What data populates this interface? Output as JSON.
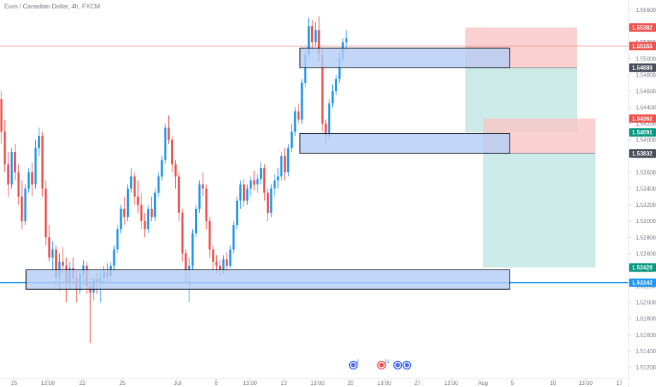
{
  "header": {
    "title": "Euro / Canadian Dollar, 4h, FXCM"
  },
  "colors": {
    "up": "#2196f3",
    "down": "#ef5350",
    "zone_fill": "#b3cdf5",
    "zone_stroke": "#000000",
    "stop_zone": "#f8c9c9",
    "target_zone": "#c5e8e6",
    "resistance_line": "#f28b8b",
    "support_line": "#2196f3"
  },
  "chart_data": {
    "type": "candlestick",
    "title": "Euro / Canadian Dollar, 4h, FXCM",
    "ylim": [
      1.5112,
      1.5583
    ],
    "x_tick_labels": [
      "15",
      "13:00",
      "22",
      "25",
      "Jul",
      "6",
      "13:00",
      "13",
      "13:00",
      "20",
      "13:00",
      "27",
      "13:00",
      "Aug",
      "5",
      "10",
      "13:00",
      "17"
    ],
    "y_tick_labels": [
      "1.55600",
      "1.55400",
      "1.55200",
      "1.55000",
      "1.54800",
      "1.54600",
      "1.54400",
      "1.54200",
      "1.54000",
      "1.53800",
      "1.53600",
      "1.53400",
      "1.53200",
      "1.53000",
      "1.52800",
      "1.52600",
      "1.52400",
      "1.52200",
      "1.52000",
      "1.51800",
      "1.51600",
      "1.51400",
      "1.51200"
    ],
    "price_tags": [
      {
        "label": "1.55382",
        "value": 1.55382,
        "color": "#ef5350"
      },
      {
        "label": "1.55155",
        "value": 1.55155,
        "color": "#ef5350"
      },
      {
        "label": "1.54888",
        "value": 1.54888,
        "color": "#4a4f5a"
      },
      {
        "label": "1.54262",
        "value": 1.54262,
        "color": "#ef5350"
      },
      {
        "label": "1.54091",
        "value": 1.54091,
        "color": "#089981"
      },
      {
        "label": "1.53832",
        "value": 1.53832,
        "color": "#4a4f5a"
      },
      {
        "label": "1.52428",
        "value": 1.52428,
        "color": "#089981"
      },
      {
        "label": "1.52242",
        "value": 1.52242,
        "color": "#2196f3"
      }
    ],
    "horizontal_lines": [
      {
        "name": "resistance",
        "value": 1.55155
      },
      {
        "name": "support",
        "value": 1.52242
      }
    ],
    "zones": [
      {
        "name": "upper-zone",
        "y_top": 1.5513,
        "y_bottom": 1.54888
      },
      {
        "name": "middle-zone",
        "y_top": 1.5408,
        "y_bottom": 1.53832
      },
      {
        "name": "lower-zone",
        "y_top": 1.524,
        "y_bottom": 1.5216
      }
    ],
    "positions": [
      {
        "name": "short-position-1",
        "entry": 1.54888,
        "stop": 1.55382,
        "target": 1.54091
      },
      {
        "name": "short-position-2",
        "entry": 1.53832,
        "stop": 1.54262,
        "target": 1.52428
      }
    ],
    "events": [
      {
        "label": "2"
      },
      {
        "label": "11"
      },
      {
        "label": ""
      },
      {
        "label": ""
      }
    ],
    "candles": [
      [
        1.545,
        1.546,
        1.5395,
        1.541
      ],
      [
        1.541,
        1.5425,
        1.536,
        1.537
      ],
      [
        1.537,
        1.5385,
        1.533,
        1.5345
      ],
      [
        1.5345,
        1.539,
        1.534,
        1.5385
      ],
      [
        1.5385,
        1.5395,
        1.535,
        1.536
      ],
      [
        1.536,
        1.537,
        1.532,
        1.533
      ],
      [
        1.533,
        1.535,
        1.529,
        1.53
      ],
      [
        1.53,
        1.5345,
        1.5295,
        1.534
      ],
      [
        1.534,
        1.5365,
        1.5335,
        1.536
      ],
      [
        1.536,
        1.5372,
        1.533,
        1.5345
      ],
      [
        1.5345,
        1.54,
        1.534,
        1.539
      ],
      [
        1.539,
        1.5415,
        1.538,
        1.5405
      ],
      [
        1.5405,
        1.541,
        1.533,
        1.534
      ],
      [
        1.534,
        1.535,
        1.527,
        1.528
      ],
      [
        1.528,
        1.5295,
        1.525,
        1.5255
      ],
      [
        1.5255,
        1.5275,
        1.524,
        1.5265
      ],
      [
        1.5265,
        1.527,
        1.522,
        1.523
      ],
      [
        1.523,
        1.526,
        1.5215,
        1.525
      ],
      [
        1.525,
        1.5268,
        1.5235,
        1.5245
      ],
      [
        1.5245,
        1.5255,
        1.52,
        1.5225
      ],
      [
        1.5225,
        1.525,
        1.5215,
        1.5242
      ],
      [
        1.5242,
        1.5255,
        1.5222,
        1.523
      ],
      [
        1.523,
        1.524,
        1.52,
        1.5215
      ],
      [
        1.5215,
        1.524,
        1.521,
        1.5235
      ],
      [
        1.5235,
        1.5252,
        1.5225,
        1.5245
      ],
      [
        1.5245,
        1.525,
        1.521,
        1.522
      ],
      [
        1.522,
        1.523,
        1.515,
        1.5212
      ],
      [
        1.5212,
        1.5232,
        1.5202,
        1.5228
      ],
      [
        1.5228,
        1.5238,
        1.521,
        1.5225
      ],
      [
        1.5225,
        1.524,
        1.52,
        1.523
      ],
      [
        1.523,
        1.5245,
        1.5222,
        1.5238
      ],
      [
        1.5238,
        1.5248,
        1.5226,
        1.5232
      ],
      [
        1.5232,
        1.525,
        1.5228,
        1.5245
      ],
      [
        1.5245,
        1.527,
        1.524,
        1.5265
      ],
      [
        1.5265,
        1.5295,
        1.526,
        1.529
      ],
      [
        1.529,
        1.532,
        1.5285,
        1.5315
      ],
      [
        1.5315,
        1.533,
        1.5295,
        1.5305
      ],
      [
        1.5305,
        1.5345,
        1.53,
        1.534
      ],
      [
        1.534,
        1.5365,
        1.5335,
        1.5355
      ],
      [
        1.5355,
        1.536,
        1.532,
        1.533
      ],
      [
        1.533,
        1.535,
        1.531,
        1.532
      ],
      [
        1.532,
        1.5335,
        1.529,
        1.53
      ],
      [
        1.53,
        1.531,
        1.528,
        1.529
      ],
      [
        1.529,
        1.532,
        1.5285,
        1.5315
      ],
      [
        1.5315,
        1.533,
        1.53,
        1.5305
      ],
      [
        1.5305,
        1.534,
        1.53,
        1.5335
      ],
      [
        1.5335,
        1.536,
        1.533,
        1.5355
      ],
      [
        1.5355,
        1.538,
        1.535,
        1.5375
      ],
      [
        1.5375,
        1.542,
        1.537,
        1.5415
      ],
      [
        1.5415,
        1.543,
        1.5395,
        1.54
      ],
      [
        1.54,
        1.5405,
        1.536,
        1.537
      ],
      [
        1.537,
        1.5375,
        1.534,
        1.5355
      ],
      [
        1.5355,
        1.536,
        1.53,
        1.531
      ],
      [
        1.531,
        1.5315,
        1.525,
        1.526
      ],
      [
        1.526,
        1.5265,
        1.5225,
        1.524
      ],
      [
        1.524,
        1.5255,
        1.52,
        1.5245
      ],
      [
        1.5245,
        1.529,
        1.524,
        1.5285
      ],
      [
        1.5285,
        1.532,
        1.528,
        1.5315
      ],
      [
        1.5315,
        1.535,
        1.531,
        1.5345
      ],
      [
        1.5345,
        1.536,
        1.533,
        1.534
      ],
      [
        1.534,
        1.5345,
        1.529,
        1.53
      ],
      [
        1.53,
        1.5305,
        1.5255,
        1.5265
      ],
      [
        1.5265,
        1.527,
        1.524,
        1.525
      ],
      [
        1.525,
        1.5258,
        1.5235,
        1.5245
      ],
      [
        1.5245,
        1.5252,
        1.5232,
        1.524
      ],
      [
        1.524,
        1.5258,
        1.5234,
        1.5253
      ],
      [
        1.5253,
        1.5262,
        1.5238,
        1.5245
      ],
      [
        1.5245,
        1.527,
        1.5242,
        1.5265
      ],
      [
        1.5265,
        1.53,
        1.526,
        1.5295
      ],
      [
        1.5295,
        1.533,
        1.529,
        1.5325
      ],
      [
        1.5325,
        1.535,
        1.5315,
        1.5345
      ],
      [
        1.5345,
        1.5352,
        1.5318,
        1.5325
      ],
      [
        1.5325,
        1.5345,
        1.532,
        1.534
      ],
      [
        1.534,
        1.5355,
        1.533,
        1.535
      ],
      [
        1.535,
        1.5362,
        1.5338,
        1.5345
      ],
      [
        1.5345,
        1.5358,
        1.5335,
        1.5352
      ],
      [
        1.5352,
        1.5372,
        1.5345,
        1.5365
      ],
      [
        1.5365,
        1.537,
        1.5325,
        1.5335
      ],
      [
        1.5335,
        1.534,
        1.53,
        1.531
      ],
      [
        1.531,
        1.5345,
        1.5305,
        1.534
      ],
      [
        1.534,
        1.5358,
        1.533,
        1.535
      ],
      [
        1.535,
        1.5365,
        1.534,
        1.5355
      ],
      [
        1.5355,
        1.5385,
        1.535,
        1.538
      ],
      [
        1.538,
        1.539,
        1.535,
        1.536
      ],
      [
        1.536,
        1.5395,
        1.5355,
        1.539
      ],
      [
        1.539,
        1.542,
        1.5385,
        1.541
      ],
      [
        1.541,
        1.544,
        1.5405,
        1.5435
      ],
      [
        1.5435,
        1.5445,
        1.542,
        1.5425
      ],
      [
        1.5425,
        1.5475,
        1.542,
        1.547
      ],
      [
        1.547,
        1.551,
        1.5465,
        1.5505
      ],
      [
        1.5505,
        1.555,
        1.55,
        1.554
      ],
      [
        1.554,
        1.5548,
        1.551,
        1.552
      ],
      [
        1.552,
        1.5545,
        1.5515,
        1.5535
      ],
      [
        1.5535,
        1.5552,
        1.5495,
        1.5505
      ],
      [
        1.5505,
        1.5512,
        1.541,
        1.542
      ],
      [
        1.542,
        1.5425,
        1.5395,
        1.5405
      ],
      [
        1.5405,
        1.545,
        1.54,
        1.5445
      ],
      [
        1.5445,
        1.5468,
        1.544,
        1.546
      ],
      [
        1.546,
        1.548,
        1.5455,
        1.5475
      ],
      [
        1.5475,
        1.551,
        1.547,
        1.55
      ],
      [
        1.55,
        1.5525,
        1.5495,
        1.552
      ],
      [
        1.552,
        1.5535,
        1.551,
        1.5525
      ]
    ]
  }
}
